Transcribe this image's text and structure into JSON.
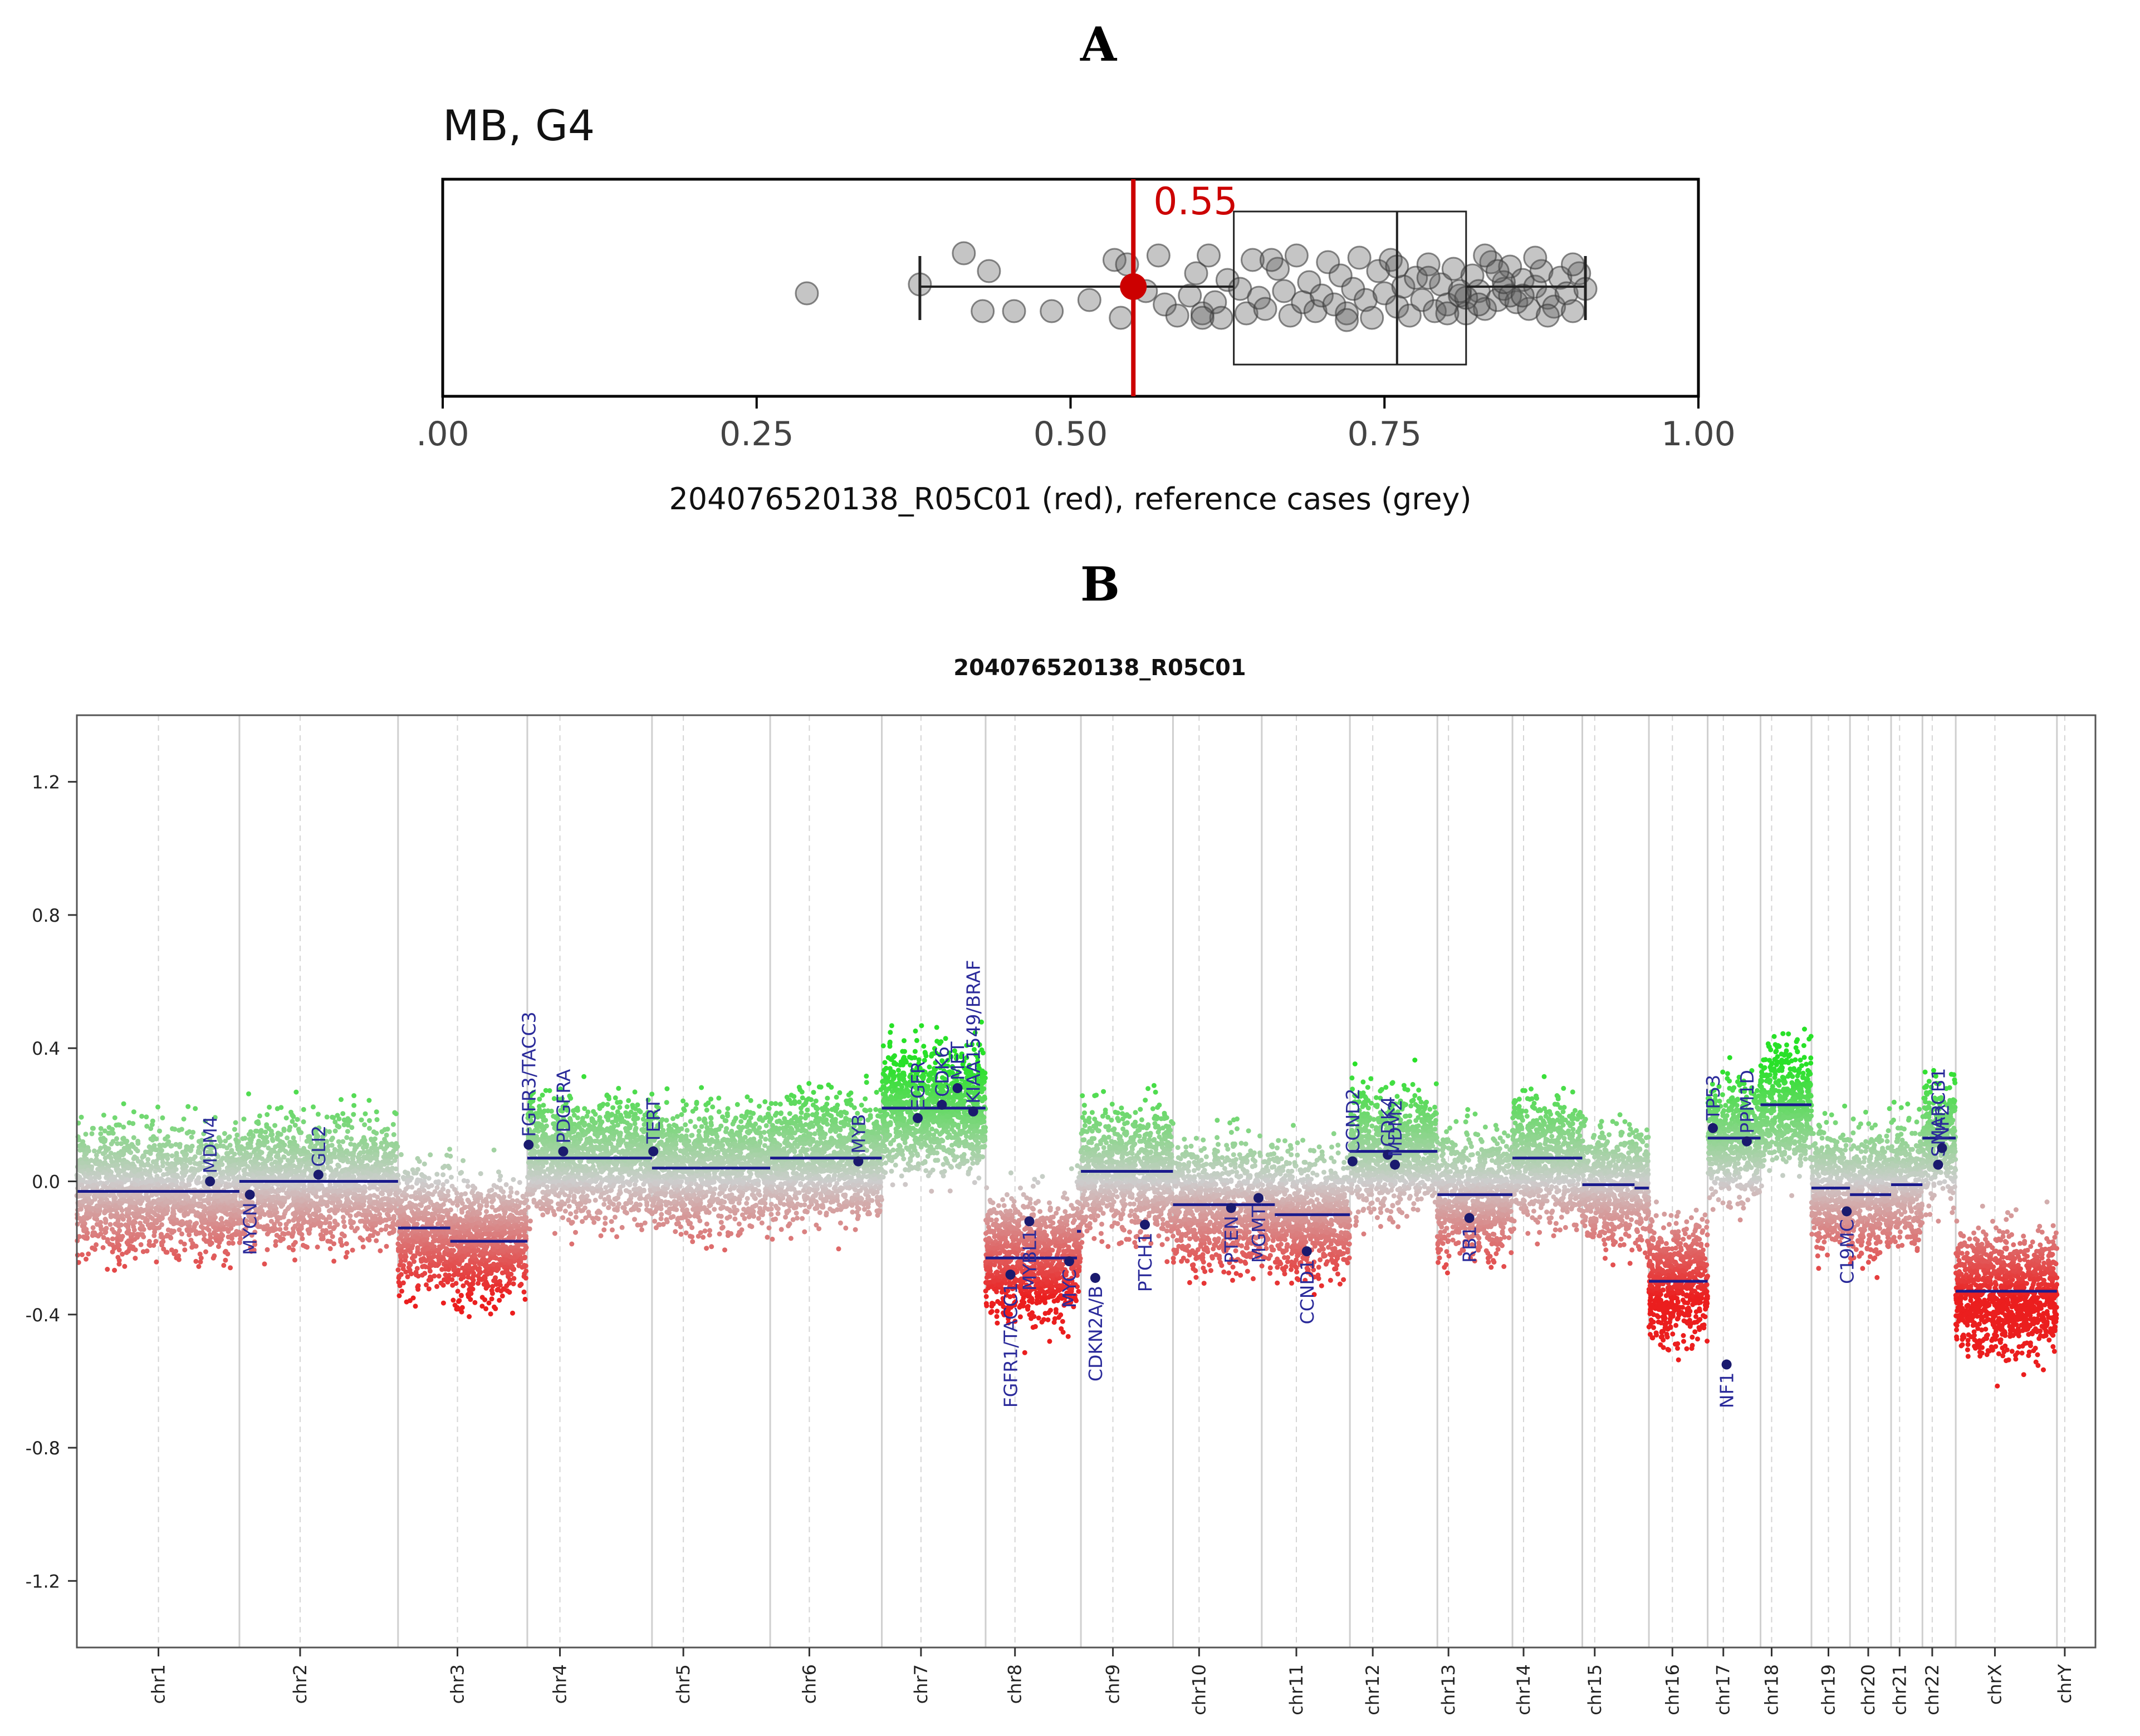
{
  "panel_a_label": "A",
  "panel_b_label": "B",
  "colors": {
    "sample": "#cc0000",
    "reference": "#888888",
    "segment": "#1a1a8c",
    "gain": "#33dd33",
    "loss": "#ee2222",
    "neutral": "#c8c8c8"
  },
  "chart_data": [
    {
      "type": "scatter",
      "subtype": "box-strip",
      "title": "MB, G4",
      "xlabel": "204076520138_R05C01 (red), reference cases (grey)",
      "xlim": [
        0,
        1
      ],
      "xticks": [
        0,
        0.25,
        0.5,
        0.75,
        1.0
      ],
      "xtick_labels": [
        ".00",
        "0.25",
        "0.50",
        "0.75",
        "1.00"
      ],
      "sample": {
        "name": "204076520138_R05C01",
        "value": 0.55,
        "label": "0.55"
      },
      "box": {
        "q1": 0.63,
        "median": 0.76,
        "q3": 0.815,
        "whisker_low": 0.38,
        "whisker_high": 0.91
      },
      "reference_values": [
        0.29,
        0.38,
        0.415,
        0.43,
        0.435,
        0.455,
        0.485,
        0.515,
        0.535,
        0.54,
        0.545,
        0.56,
        0.57,
        0.575,
        0.585,
        0.595,
        0.6,
        0.605,
        0.61,
        0.615,
        0.62,
        0.625,
        0.635,
        0.64,
        0.645,
        0.65,
        0.655,
        0.665,
        0.67,
        0.675,
        0.68,
        0.685,
        0.69,
        0.695,
        0.7,
        0.705,
        0.71,
        0.715,
        0.72,
        0.725,
        0.73,
        0.735,
        0.74,
        0.745,
        0.75,
        0.755,
        0.76,
        0.765,
        0.77,
        0.775,
        0.78,
        0.785,
        0.79,
        0.795,
        0.8,
        0.805,
        0.81,
        0.815,
        0.82,
        0.825,
        0.83,
        0.835,
        0.84,
        0.845,
        0.85,
        0.855,
        0.86,
        0.865,
        0.87,
        0.875,
        0.88,
        0.885,
        0.89,
        0.895,
        0.9,
        0.905,
        0.91,
        0.605,
        0.66,
        0.72,
        0.76,
        0.8,
        0.83,
        0.85,
        0.87,
        0.88,
        0.9,
        0.785,
        0.815,
        0.845,
        0.81,
        0.825,
        0.84,
        0.86
      ],
      "reference_offsets": [
        0.15,
        -0.05,
        -0.75,
        0.55,
        -0.35,
        0.55,
        0.55,
        0.3,
        -0.6,
        0.7,
        -0.5,
        0.1,
        -0.7,
        0.4,
        0.65,
        0.2,
        -0.3,
        0.6,
        -0.7,
        0.35,
        0.7,
        -0.15,
        0.05,
        0.6,
        -0.6,
        0.25,
        0.5,
        -0.4,
        0.1,
        0.65,
        -0.7,
        0.35,
        -0.1,
        0.55,
        0.2,
        -0.55,
        0.4,
        -0.25,
        0.6,
        0.05,
        -0.65,
        0.3,
        0.7,
        -0.35,
        0.15,
        -0.6,
        0.45,
        0.0,
        0.65,
        -0.2,
        0.3,
        -0.5,
        0.55,
        -0.05,
        0.4,
        -0.4,
        0.2,
        0.6,
        -0.25,
        0.1,
        0.5,
        -0.55,
        0.3,
        0.05,
        -0.45,
        0.35,
        -0.15,
        0.5,
        0.0,
        -0.35,
        0.25,
        0.45,
        -0.2,
        0.15,
        0.55,
        -0.3,
        0.05,
        0.7,
        -0.6,
        0.75,
        -0.45,
        0.6,
        -0.7,
        0.2,
        -0.65,
        0.65,
        -0.5,
        -0.2,
        0.25,
        -0.1,
        0.1,
        0.4,
        -0.35,
        0.2
      ]
    },
    {
      "type": "scatter",
      "subtype": "copy-number-profile",
      "title": "204076520138_R05C01",
      "ylim": [
        -1.4,
        1.4
      ],
      "yticks": [
        -1.2,
        -0.8,
        -0.4,
        0.0,
        0.4,
        0.8,
        1.2
      ],
      "ytick_labels": [
        "-1.2",
        "-0.8",
        "-0.4",
        "0.0",
        "0.4",
        "0.8",
        "1.2"
      ],
      "chromosomes": [
        {
          "name": "chr1",
          "len": 249
        },
        {
          "name": "chr2",
          "len": 243
        },
        {
          "name": "chr3",
          "len": 198
        },
        {
          "name": "chr4",
          "len": 191
        },
        {
          "name": "chr5",
          "len": 181
        },
        {
          "name": "chr6",
          "len": 171
        },
        {
          "name": "chr7",
          "len": 159
        },
        {
          "name": "chr8",
          "len": 146
        },
        {
          "name": "chr9",
          "len": 141
        },
        {
          "name": "chr10",
          "len": 136
        },
        {
          "name": "chr11",
          "len": 135
        },
        {
          "name": "chr12",
          "len": 134
        },
        {
          "name": "chr13",
          "len": 115
        },
        {
          "name": "chr14",
          "len": 107
        },
        {
          "name": "chr15",
          "len": 102
        },
        {
          "name": "chr16",
          "len": 90
        },
        {
          "name": "chr17",
          "len": 81
        },
        {
          "name": "chr18",
          "len": 78
        },
        {
          "name": "chr19",
          "len": 59
        },
        {
          "name": "chr20",
          "len": 63
        },
        {
          "name": "chr21",
          "len": 48
        },
        {
          "name": "chr22",
          "len": 51
        },
        {
          "name": "chrX",
          "len": 155
        },
        {
          "name": "chrY",
          "len": 59
        }
      ],
      "centromeres": [
        125,
        93,
        91,
        50,
        48,
        60,
        60,
        45,
        49,
        40,
        53,
        35,
        17,
        17,
        19,
        36,
        24,
        17,
        26,
        28,
        13,
        15,
        60,
        12
      ],
      "segments": [
        {
          "chr": 0,
          "from": 0,
          "to": 249,
          "value": -0.03
        },
        {
          "chr": 1,
          "from": 0,
          "to": 243,
          "value": 0.0
        },
        {
          "chr": 2,
          "from": 0,
          "to": 80,
          "value": -0.14
        },
        {
          "chr": 2,
          "from": 80,
          "to": 198,
          "value": -0.18
        },
        {
          "chr": 3,
          "from": 0,
          "to": 191,
          "value": 0.07
        },
        {
          "chr": 4,
          "from": 0,
          "to": 181,
          "value": 0.04
        },
        {
          "chr": 5,
          "from": 0,
          "to": 171,
          "value": 0.07
        },
        {
          "chr": 6,
          "from": 0,
          "to": 159,
          "value": 0.22
        },
        {
          "chr": 7,
          "from": 0,
          "to": 140,
          "value": -0.23
        },
        {
          "chr": 7,
          "from": 140,
          "to": 146,
          "value": -0.15
        },
        {
          "chr": 8,
          "from": 0,
          "to": 105,
          "value": 0.03
        },
        {
          "chr": 8,
          "from": 105,
          "to": 141,
          "value": 0.03
        },
        {
          "chr": 9,
          "from": 0,
          "to": 136,
          "value": -0.07
        },
        {
          "chr": 10,
          "from": 0,
          "to": 20,
          "value": -0.07
        },
        {
          "chr": 10,
          "from": 20,
          "to": 135,
          "value": -0.1
        },
        {
          "chr": 11,
          "from": 0,
          "to": 134,
          "value": 0.09
        },
        {
          "chr": 12,
          "from": 0,
          "to": 115,
          "value": -0.04
        },
        {
          "chr": 13,
          "from": 0,
          "to": 107,
          "value": 0.07
        },
        {
          "chr": 14,
          "from": 0,
          "to": 80,
          "value": -0.01
        },
        {
          "chr": 14,
          "from": 80,
          "to": 102,
          "value": -0.02
        },
        {
          "chr": 15,
          "from": 0,
          "to": 90,
          "value": -0.3
        },
        {
          "chr": 16,
          "from": 0,
          "to": 81,
          "value": 0.13
        },
        {
          "chr": 17,
          "from": 0,
          "to": 78,
          "value": 0.23
        },
        {
          "chr": 18,
          "from": 0,
          "to": 59,
          "value": -0.02
        },
        {
          "chr": 19,
          "from": 0,
          "to": 63,
          "value": -0.04
        },
        {
          "chr": 20,
          "from": 0,
          "to": 48,
          "value": -0.01
        },
        {
          "chr": 21,
          "from": 0,
          "to": 51,
          "value": 0.13
        },
        {
          "chr": 22,
          "from": 0,
          "to": 155,
          "value": -0.33
        }
      ],
      "genes": [
        {
          "name": "MDM4",
          "chr": 0,
          "pos": 204,
          "value": 0.0,
          "dir": "up"
        },
        {
          "name": "MYCN",
          "chr": 1,
          "pos": 16,
          "value": -0.04,
          "dir": "down"
        },
        {
          "name": "GLI2",
          "chr": 1,
          "pos": 121,
          "value": 0.02,
          "dir": "up"
        },
        {
          "name": "FGFR3/TACC3",
          "chr": 3,
          "pos": 2,
          "value": 0.11,
          "dir": "up"
        },
        {
          "name": "PDGFRA",
          "chr": 3,
          "pos": 55,
          "value": 0.09,
          "dir": "up"
        },
        {
          "name": "TERT",
          "chr": 4,
          "pos": 2,
          "value": 0.09,
          "dir": "up"
        },
        {
          "name": "MYB",
          "chr": 5,
          "pos": 135,
          "value": 0.06,
          "dir": "up"
        },
        {
          "name": "EGFR",
          "chr": 6,
          "pos": 55,
          "value": 0.19,
          "dir": "up"
        },
        {
          "name": "CDK6",
          "chr": 6,
          "pos": 92,
          "value": 0.23,
          "dir": "up"
        },
        {
          "name": "MET",
          "chr": 6,
          "pos": 116,
          "value": 0.28,
          "dir": "up"
        },
        {
          "name": "KIAA1549/BRAF",
          "chr": 6,
          "pos": 140,
          "value": 0.21,
          "dir": "up"
        },
        {
          "name": "FGFR1/TACC1",
          "chr": 7,
          "pos": 38,
          "value": -0.28,
          "dir": "down"
        },
        {
          "name": "MYBL1",
          "chr": 7,
          "pos": 67,
          "value": -0.12,
          "dir": "down"
        },
        {
          "name": "MYC",
          "chr": 7,
          "pos": 128,
          "value": -0.24,
          "dir": "down"
        },
        {
          "name": "CDKN2A/B",
          "chr": 8,
          "pos": 22,
          "value": -0.29,
          "dir": "down"
        },
        {
          "name": "PTCH1",
          "chr": 8,
          "pos": 98,
          "value": -0.13,
          "dir": "down"
        },
        {
          "name": "PTEN",
          "chr": 9,
          "pos": 89,
          "value": -0.08,
          "dir": "down"
        },
        {
          "name": "MGMT",
          "chr": 9,
          "pos": 131,
          "value": -0.05,
          "dir": "down"
        },
        {
          "name": "CCND1",
          "chr": 10,
          "pos": 69,
          "value": -0.21,
          "dir": "down"
        },
        {
          "name": "CCND2",
          "chr": 11,
          "pos": 4,
          "value": 0.06,
          "dir": "up"
        },
        {
          "name": "CDK4",
          "chr": 11,
          "pos": 58,
          "value": 0.08,
          "dir": "up"
        },
        {
          "name": "MDM2",
          "chr": 11,
          "pos": 69,
          "value": 0.05,
          "dir": "up"
        },
        {
          "name": "RB1",
          "chr": 12,
          "pos": 49,
          "value": -0.11,
          "dir": "down"
        },
        {
          "name": "NF1",
          "chr": 16,
          "pos": 29,
          "value": -0.55,
          "dir": "down"
        },
        {
          "name": "TP53",
          "chr": 16,
          "pos": 8,
          "value": 0.16,
          "dir": "up"
        },
        {
          "name": "PPM1D",
          "chr": 16,
          "pos": 60,
          "value": 0.12,
          "dir": "up"
        },
        {
          "name": "C19MC",
          "chr": 18,
          "pos": 54,
          "value": -0.09,
          "dir": "down"
        },
        {
          "name": "SMARCB1",
          "chr": 21,
          "pos": 24,
          "value": 0.05,
          "dir": "up"
        },
        {
          "name": "NF2",
          "chr": 21,
          "pos": 30,
          "value": 0.1,
          "dir": "up"
        }
      ],
      "probe_noise": {
        "spread": 0.09,
        "density_per_mb": 7
      }
    }
  ]
}
